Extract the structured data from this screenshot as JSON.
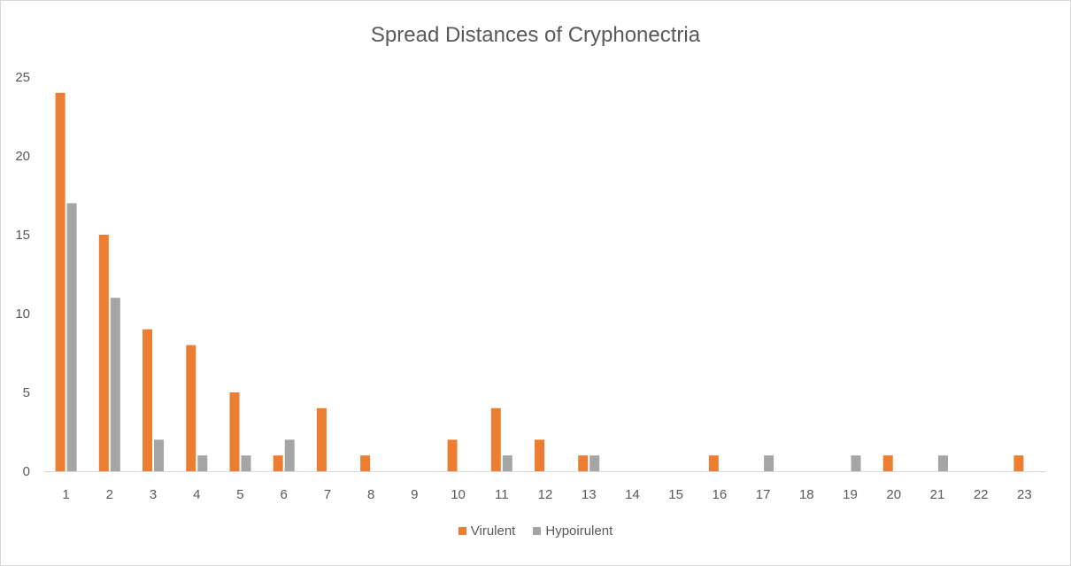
{
  "chart_data": {
    "type": "bar",
    "title": "Spread Distances of Cryphonectria",
    "xlabel": "",
    "ylabel": "",
    "categories": [
      "1",
      "2",
      "3",
      "4",
      "5",
      "6",
      "7",
      "8",
      "9",
      "10",
      "11",
      "12",
      "13",
      "14",
      "15",
      "16",
      "17",
      "18",
      "19",
      "20",
      "21",
      "22",
      "23"
    ],
    "series": [
      {
        "name": "Virulent",
        "color": "#ed7d31",
        "values": [
          24,
          15,
          9,
          8,
          5,
          1,
          4,
          1,
          0,
          2,
          4,
          2,
          1,
          0,
          0,
          1,
          0,
          0,
          0,
          1,
          0,
          0,
          1
        ]
      },
      {
        "name": "Hypoirulent",
        "color": "#a5a5a5",
        "values": [
          17,
          11,
          2,
          1,
          1,
          2,
          0,
          0,
          0,
          0,
          1,
          0,
          1,
          0,
          0,
          0,
          1,
          0,
          1,
          0,
          1,
          0,
          0
        ]
      }
    ],
    "ylim": [
      0,
      25
    ],
    "yticks": [
      0,
      5,
      10,
      15,
      20,
      25
    ],
    "grid": false,
    "legend_position": "bottom"
  }
}
